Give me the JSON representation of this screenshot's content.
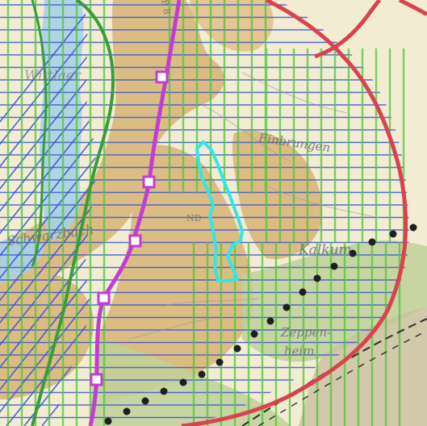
{
  "map": {
    "labels": {
      "town_center": "Einbrungen",
      "town_east": "Kalkum",
      "town_southeast": "Zeppen-",
      "town_southeast_2": "heim",
      "water": "Schwarzbach",
      "west_top": "Wittlaer",
      "road_code": "B 8",
      "area_code": "ND"
    },
    "colors": {
      "base": "#f2ecd2",
      "settlement": "#d9b77a",
      "settlement_light": "#e7cfa0",
      "forest": "#bfd19a",
      "water": "#a9d1e6",
      "hatch_blue": "#3557d6",
      "hatch_green": "#4fc43c",
      "boundary_red": "#d9434f",
      "route_magenta": "#c23ed1",
      "highlight_cyan": "#33e6e6",
      "outline_green": "#3a9c3a",
      "railway": "#2c2c2c",
      "dots": "#1f1f1f"
    },
    "icons": [
      "square-marker-icon",
      "black-dot-icon"
    ]
  }
}
